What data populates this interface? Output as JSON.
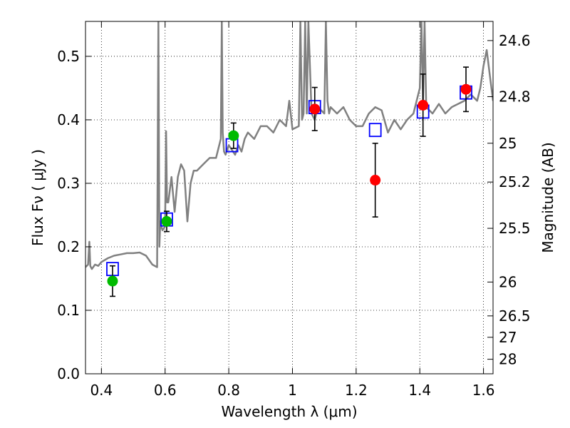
{
  "chart_data": {
    "type": "scatter",
    "title": "",
    "xlabel": "Wavelength  λ (μm)",
    "ylabel": "Flux  Fν  ( μJy )",
    "ylabel_right": "Magnitude (AB)",
    "xlim": [
      0.35,
      1.63
    ],
    "ylim": [
      0.0,
      0.555
    ],
    "grid": true,
    "x_ticks": [
      0.4,
      0.6,
      0.8,
      1.0,
      1.2,
      1.4,
      1.6
    ],
    "x_tick_labels": [
      "0.4",
      "0.6",
      "0.8",
      "1",
      "1.2",
      "1.4",
      "1.6"
    ],
    "y_ticks": [
      0.0,
      0.1,
      0.2,
      0.3,
      0.4,
      0.5
    ],
    "y_tick_labels": [
      "0.0",
      "0.1",
      "0.2",
      "0.3",
      "0.4",
      "0.5"
    ],
    "right_ticks": [
      {
        "label": "24.6",
        "flux": 0.5248
      },
      {
        "label": "24.8",
        "flux": 0.4365
      },
      {
        "label": "25",
        "flux": 0.3631
      },
      {
        "label": "25.2",
        "flux": 0.302
      },
      {
        "label": "25.5",
        "flux": 0.2291
      },
      {
        "label": "26",
        "flux": 0.1445
      },
      {
        "label": "26.5",
        "flux": 0.0912
      },
      {
        "label": "27",
        "flux": 0.0575
      },
      {
        "label": "28",
        "flux": 0.0229
      }
    ],
    "series": [
      {
        "kind": "line",
        "color": "#808080",
        "x": [
          0.35,
          0.358,
          0.362,
          0.365,
          0.37,
          0.38,
          0.39,
          0.4,
          0.42,
          0.44,
          0.46,
          0.48,
          0.5,
          0.52,
          0.54,
          0.56,
          0.575,
          0.579,
          0.582,
          0.585,
          0.588,
          0.592,
          0.6,
          0.603,
          0.606,
          0.61,
          0.62,
          0.63,
          0.64,
          0.65,
          0.66,
          0.67,
          0.68,
          0.69,
          0.7,
          0.72,
          0.74,
          0.76,
          0.775,
          0.778,
          0.781,
          0.785,
          0.79,
          0.8,
          0.82,
          0.83,
          0.84,
          0.85,
          0.86,
          0.88,
          0.9,
          0.92,
          0.94,
          0.96,
          0.98,
          0.99,
          1.0,
          1.02,
          1.025,
          1.03,
          1.035,
          1.04,
          1.045,
          1.05,
          1.06,
          1.07,
          1.08,
          1.1,
          1.105,
          1.11,
          1.115,
          1.12,
          1.14,
          1.16,
          1.18,
          1.2,
          1.22,
          1.24,
          1.26,
          1.28,
          1.3,
          1.32,
          1.34,
          1.36,
          1.38,
          1.4,
          1.405,
          1.41,
          1.415,
          1.42,
          1.44,
          1.46,
          1.48,
          1.5,
          1.52,
          1.54,
          1.56,
          1.58,
          1.59,
          1.6,
          1.61,
          1.62,
          1.63
        ],
        "y": [
          0.168,
          0.172,
          0.208,
          0.17,
          0.165,
          0.172,
          0.17,
          0.176,
          0.182,
          0.186,
          0.188,
          0.19,
          0.19,
          0.191,
          0.186,
          0.172,
          0.168,
          0.555,
          0.2,
          0.24,
          0.232,
          0.226,
          0.232,
          0.382,
          0.27,
          0.27,
          0.31,
          0.255,
          0.31,
          0.33,
          0.32,
          0.24,
          0.3,
          0.32,
          0.32,
          0.33,
          0.34,
          0.34,
          0.37,
          0.555,
          0.38,
          0.35,
          0.345,
          0.36,
          0.345,
          0.36,
          0.35,
          0.37,
          0.38,
          0.37,
          0.39,
          0.39,
          0.38,
          0.4,
          0.39,
          0.43,
          0.385,
          0.39,
          0.555,
          0.4,
          0.41,
          0.555,
          0.41,
          0.555,
          0.41,
          0.4,
          0.42,
          0.41,
          0.555,
          0.43,
          0.41,
          0.42,
          0.41,
          0.42,
          0.4,
          0.39,
          0.39,
          0.41,
          0.42,
          0.415,
          0.38,
          0.4,
          0.385,
          0.4,
          0.41,
          0.45,
          0.555,
          0.43,
          0.555,
          0.42,
          0.41,
          0.425,
          0.41,
          0.42,
          0.425,
          0.43,
          0.44,
          0.43,
          0.45,
          0.485,
          0.51,
          0.47,
          0.43
        ]
      },
      {
        "kind": "square",
        "color": "#0000ff",
        "x": [
          0.435,
          0.605,
          0.81,
          1.07,
          1.26,
          1.41,
          1.545
        ],
        "y": [
          0.165,
          0.243,
          0.36,
          0.42,
          0.384,
          0.413,
          0.443
        ]
      },
      {
        "kind": "point",
        "color": "#00bb00",
        "x": [
          0.435,
          0.605,
          0.815
        ],
        "y": [
          0.146,
          0.24,
          0.375
        ],
        "err": [
          0.024,
          0.016,
          0.02
        ]
      },
      {
        "kind": "point",
        "color": "#ff0000",
        "x": [
          1.07,
          1.26,
          1.41,
          1.545
        ],
        "y": [
          0.417,
          0.305,
          0.423,
          0.448
        ],
        "err": [
          0.034,
          0.058,
          0.049,
          0.035
        ]
      }
    ]
  }
}
